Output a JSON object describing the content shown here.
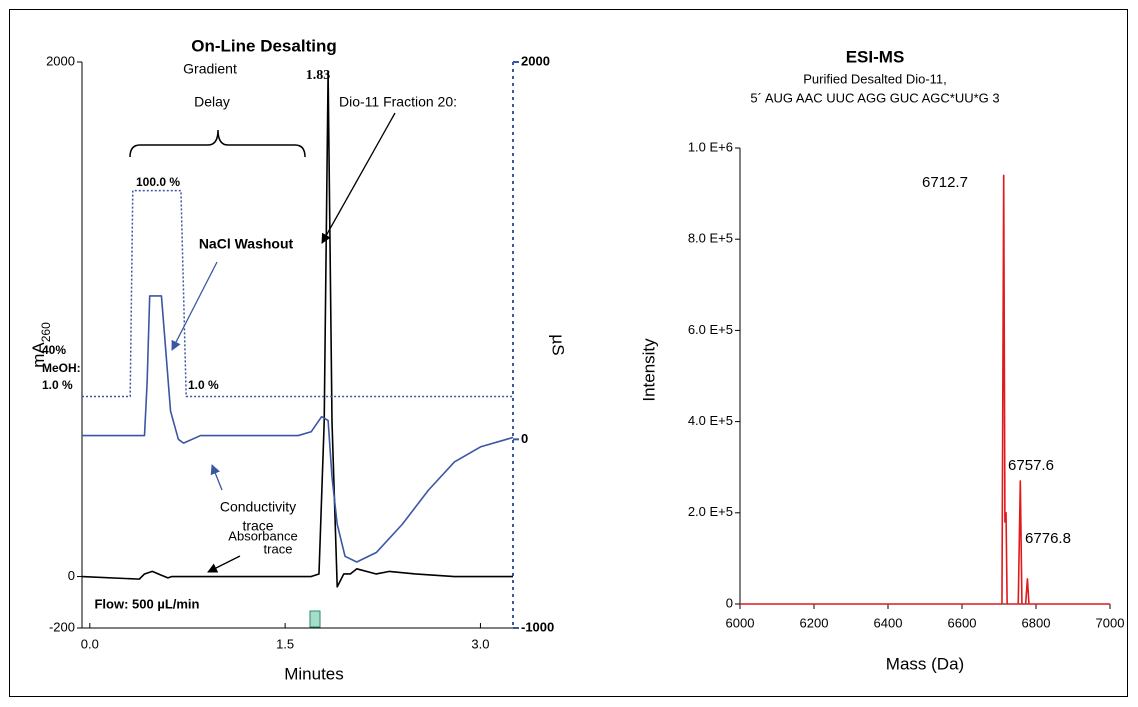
{
  "chart_data": [
    {
      "type": "line",
      "title": "On-Line Desalting",
      "xlabel": "Minutes",
      "ylabel": {
        "text": "mA",
        "subscript": "260"
      },
      "y2label": "µS",
      "xlim": [
        -0.06,
        3.25
      ],
      "ylim": [
        -200,
        2000
      ],
      "y2lim": [
        -1000,
        2000
      ],
      "xticks": [
        {
          "value": 0,
          "label": "0.0"
        },
        {
          "value": 1.5,
          "label": "1.5"
        },
        {
          "value": 3,
          "label": "3.0"
        }
      ],
      "yticks": [
        -200,
        0,
        2000
      ],
      "y2ticks": [
        -1000,
        0,
        2000
      ],
      "series": [
        {
          "color": "#000000",
          "style": "solid",
          "axis": "y",
          "x": [
            -0.06,
            0.38,
            0.42,
            0.48,
            0.55,
            0.6,
            0.63,
            1.7,
            1.76,
            1.8,
            1.83,
            1.86,
            1.9,
            1.95,
            2.0,
            2.05,
            2.2,
            2.3,
            2.5,
            2.8,
            3.25
          ],
          "values": [
            0,
            -10,
            10,
            20,
            5,
            -5,
            0,
            0,
            10,
            600,
            1960,
            600,
            -40,
            10,
            10,
            30,
            10,
            20,
            10,
            0,
            0
          ]
        },
        {
          "color": "#3b56a3",
          "style": "solid",
          "axis": "y2",
          "x": [
            -0.06,
            0.42,
            0.44,
            0.46,
            0.55,
            0.58,
            0.62,
            0.68,
            0.72,
            0.85,
            1.6,
            1.7,
            1.78,
            1.83,
            1.86,
            1.9,
            1.96,
            2.05,
            2.2,
            2.4,
            2.6,
            2.8,
            3.0,
            3.25
          ],
          "values": [
            20,
            20,
            300,
            760,
            760,
            500,
            150,
            0,
            -20,
            20,
            20,
            40,
            120,
            100,
            -200,
            -450,
            -620,
            -650,
            -600,
            -450,
            -270,
            -120,
            -40,
            10
          ]
        },
        {
          "color": "#3b56a3",
          "style": "dotted",
          "axis": "y",
          "x": [
            -0.06,
            0.31,
            0.33,
            0.7,
            0.74,
            3.25
          ],
          "values": [
            700,
            700,
            1500,
            1500,
            700,
            700
          ]
        }
      ],
      "annotations": [
        "Gradient",
        "Delay",
        "1.83",
        "Dio-11 Fraction 20:",
        "100.0 %",
        "NaCl Washout",
        "40%",
        "MeOH:",
        "1.0 %",
        "1.0 %",
        "Conductivity",
        "trace",
        "Absorbance",
        "trace",
        "Flow: 500 µL/min"
      ]
    },
    {
      "type": "line",
      "title": "ESI-MS",
      "subtitle": [
        "Purified Desalted Dio-11,",
        "5´  AUG AAC UUC AGG GUC AGC*UU*G 3"
      ],
      "xlabel": "Mass (Da)",
      "ylabel": "Intensity",
      "xlim": [
        6000,
        7000
      ],
      "ylim": [
        0,
        1000000
      ],
      "xticks": [
        6000,
        6200,
        6400,
        6600,
        6800,
        7000
      ],
      "yticks": [
        0,
        {
          "value": 200000,
          "label": "2.0 E+5"
        },
        {
          "value": 400000,
          "label": "4.0 E+5"
        },
        {
          "value": 600000,
          "label": "6.0 E+5"
        },
        {
          "value": 800000,
          "label": "8.0 E+5"
        },
        {
          "value": 1000000,
          "label": "1.0 E+6"
        }
      ],
      "series": [
        {
          "color": "#e0191b",
          "style": "solid",
          "axis": "y",
          "x": [
            6000,
            6708,
            6712.7,
            6716,
            6719,
            6722,
            6752,
            6757.6,
            6762,
            6772,
            6776.8,
            6781,
            7000
          ],
          "values": [
            0,
            0,
            940000,
            180000,
            200000,
            0,
            0,
            270000,
            0,
            0,
            55000,
            0,
            0
          ]
        }
      ],
      "annotations": [
        "6712.7",
        "6757.6",
        "6776.8"
      ]
    }
  ]
}
